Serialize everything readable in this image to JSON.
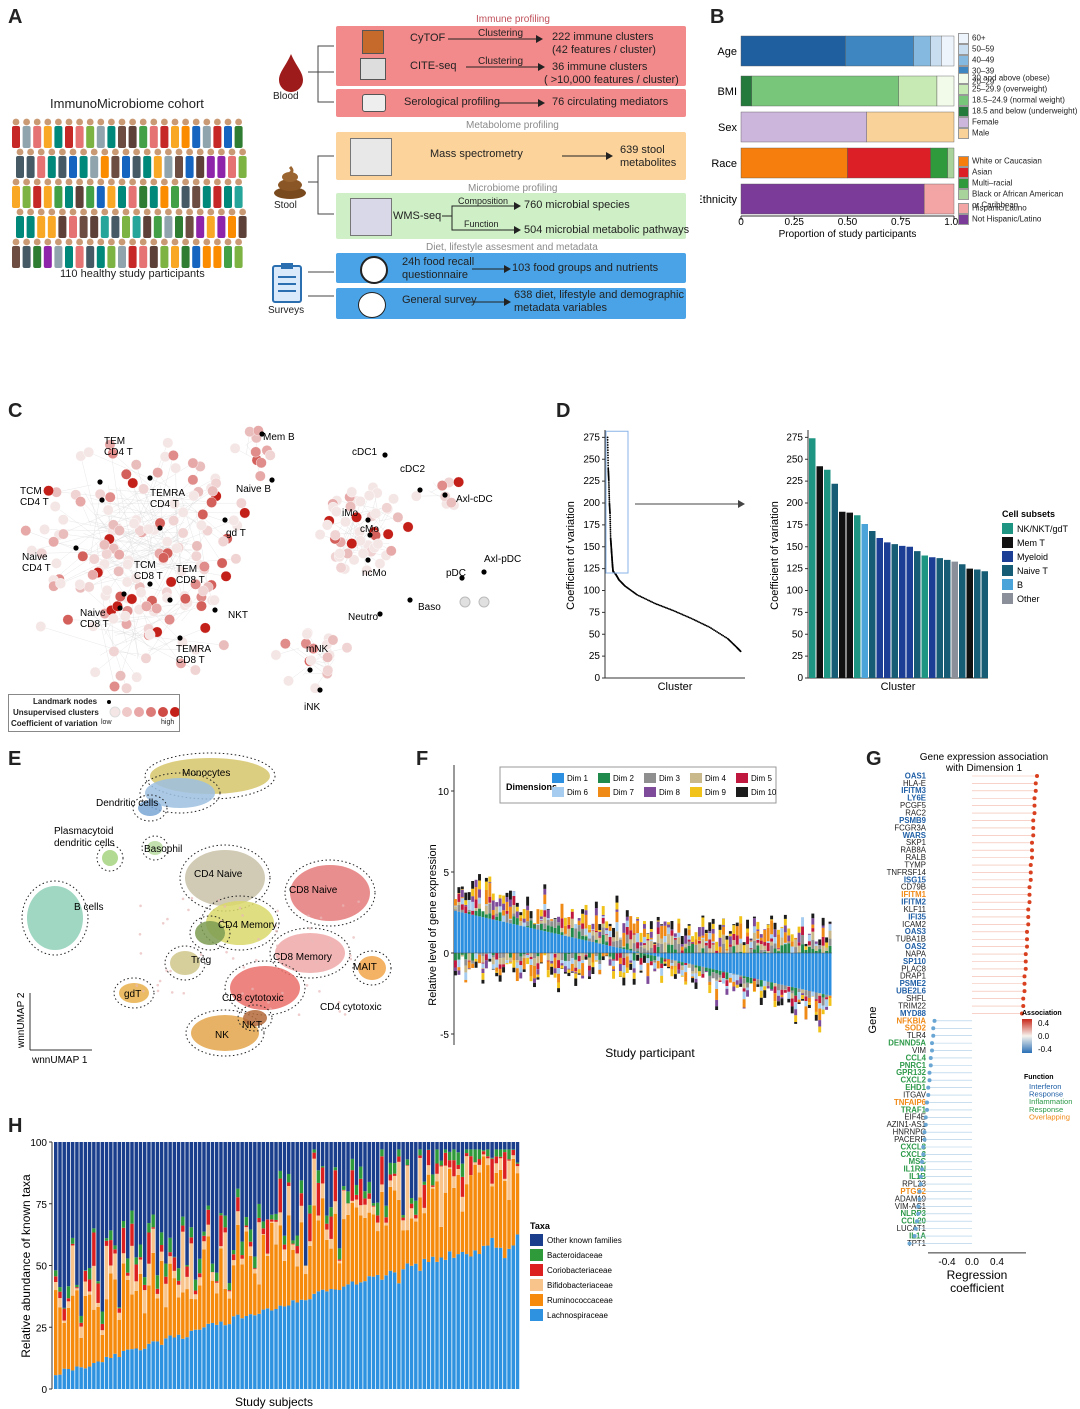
{
  "panels": {
    "A": "A",
    "B": "B",
    "C": "C",
    "D": "D",
    "E": "E",
    "F": "F",
    "G": "G",
    "H": "H"
  },
  "panelA": {
    "cohort_title": "ImmunoMicrobiome cohort",
    "cohort_caption": "110 healthy study participants",
    "sources": {
      "blood": "Blood",
      "stool": "Stool",
      "surveys": "Surveys"
    },
    "sections": {
      "immune": "Immune profiling",
      "metabolome": "Metabolome profiling",
      "microbiome": "Microbiome profiling",
      "diet": "Diet, lifestyle assesment and metadata"
    },
    "rows": {
      "cytof": {
        "method": "CyTOF",
        "arrow": "Clustering",
        "result1": "222 immune clusters",
        "result2": "(42 features / cluster)"
      },
      "cite": {
        "method": "CITE-seq",
        "arrow": "Clustering",
        "result1": "36 immune clusters",
        "result2": "( >10,000 features / cluster)"
      },
      "sero": {
        "method": "Serological profiling",
        "result1": "76 circulating mediators"
      },
      "ms": {
        "method": "Mass spectrometry",
        "result1": "639 stool",
        "result2": "metabolites"
      },
      "wms": {
        "method": "WMS-seq",
        "arrow1": "Composition",
        "arrow2": "Function",
        "result1": "760 microbial species",
        "result2": "504 microbial metabolic pathways"
      },
      "food": {
        "method1": "24h food recall",
        "method2": "questionnaire",
        "result1": "103 food groups and nutrients"
      },
      "survey": {
        "method": "General survey",
        "result1": "638 diet, lifestyle and demographic",
        "result2": "metadata variables"
      }
    }
  },
  "panelB": {
    "xlabel": "Proportion of study participants",
    "ticks": [
      "0",
      "0.25",
      "0.50",
      "0.75",
      "1.00"
    ],
    "rows": [
      {
        "label": "Age",
        "segments": [
          {
            "name": "20-29",
            "value": 0.49,
            "color": "#1f5fa0"
          },
          {
            "name": "30-39",
            "value": 0.32,
            "color": "#3d86c2"
          },
          {
            "name": "40-49",
            "value": 0.08,
            "color": "#86b9df"
          },
          {
            "name": "50-59",
            "value": 0.05,
            "color": "#c8def0"
          },
          {
            "name": "60+",
            "value": 0.06,
            "color": "#edf4fb"
          }
        ]
      },
      {
        "label": "BMI",
        "segments": [
          {
            "name": "18.5 and below (underweight)",
            "value": 0.05,
            "color": "#237a3b"
          },
          {
            "name": "18.5-24.9 (normal weight)",
            "value": 0.69,
            "color": "#78c679"
          },
          {
            "name": "25-29.9 (overweight)",
            "value": 0.18,
            "color": "#c7e9b4"
          },
          {
            "name": "30 and above (obese)",
            "value": 0.08,
            "color": "#f2fae9"
          }
        ]
      },
      {
        "label": "Sex",
        "segments": [
          {
            "name": "Female",
            "value": 0.59,
            "color": "#cdb6dc"
          },
          {
            "name": "Male",
            "value": 0.41,
            "color": "#f9d29a"
          }
        ]
      },
      {
        "label": "Race",
        "segments": [
          {
            "name": "White or Caucasian",
            "value": 0.5,
            "color": "#f57e0c"
          },
          {
            "name": "Asian",
            "value": 0.39,
            "color": "#dc1f26"
          },
          {
            "name": "Multi-racial",
            "value": 0.08,
            "color": "#2f9a3c"
          },
          {
            "name": "Black or African American or Caribbean",
            "value": 0.03,
            "color": "#a8d49b"
          }
        ]
      },
      {
        "label": "Ethnicity",
        "segments": [
          {
            "name": "Not Hispanic/Latino",
            "value": 0.86,
            "color": "#7a3c98"
          },
          {
            "name": "Hispanic/Latino",
            "value": 0.14,
            "color": "#f3a5a6"
          }
        ]
      }
    ],
    "legends": {
      "age": [
        {
          "label": "60+",
          "color": "#edf4fb"
        },
        {
          "label": "50–59",
          "color": "#c8def0"
        },
        {
          "label": "40–49",
          "color": "#86b9df"
        },
        {
          "label": "30–39",
          "color": "#3d86c2"
        },
        {
          "label": "20–29",
          "color": "#1f5fa0"
        }
      ],
      "bmi": [
        {
          "label": "30 and above (obese)",
          "color": "#f2fae9"
        },
        {
          "label": "25–29.9 (overweight)",
          "color": "#c7e9b4"
        },
        {
          "label": "18.5–24.9 (normal weight)",
          "color": "#78c679"
        },
        {
          "label": "18.5 and below (underweight)",
          "color": "#237a3b"
        }
      ],
      "sex": [
        {
          "label": "Female",
          "color": "#cdb6dc"
        },
        {
          "label": "Male",
          "color": "#f9d29a"
        }
      ],
      "race": [
        {
          "label": "White or Caucasian",
          "color": "#f57e0c"
        },
        {
          "label": "Asian",
          "color": "#dc1f26"
        },
        {
          "label": "Multi–racial",
          "color": "#2f9a3c"
        },
        {
          "label": "Black or African American",
          "color": "#a8d49b"
        },
        {
          "label": "or Caribbean",
          "color": "none"
        }
      ],
      "eth": [
        {
          "label": "Hispanic/Latino",
          "color": "#f3a5a6"
        },
        {
          "label": "Not Hispanic/Latino",
          "color": "#7a3c98"
        }
      ]
    }
  },
  "panelC": {
    "labels": [
      "TEM",
      "CD4 T",
      "TCM",
      "CD4 T",
      "TEMRA",
      "CD4 T",
      "Mem B",
      "Naive B",
      "gd T",
      "Naive",
      "CD4 T",
      "TCM",
      "CD8 T",
      "TEM",
      "CD8 T",
      "Naive",
      "CD8 T",
      "NKT",
      "TEMRA",
      "CD8 T",
      "mNK",
      "iNK",
      "cDC1",
      "cDC2",
      "Axl-cDC",
      "iMo",
      "cMo",
      "ncMo",
      "Axl-pDC",
      "pDC",
      "Neutro",
      "Baso"
    ],
    "legend": {
      "landmark": "Landmark nodes",
      "unsup": "Unsupervised clusters",
      "cv": "Coefficient of variation",
      "low": "low",
      "high": "high"
    }
  },
  "panelD": {
    "ylabel": "Coefficient of variation",
    "xlabel": "Cluster",
    "yticks": [
      "0",
      "25",
      "50",
      "75",
      "100",
      "125",
      "150",
      "175",
      "200",
      "225",
      "250",
      "275"
    ],
    "legend_title": "Cell subsets",
    "legend": [
      {
        "label": "NK/NKT/gdT",
        "color": "#1e9583"
      },
      {
        "label": "Mem T",
        "color": "#111111"
      },
      {
        "label": "Myeloid",
        "color": "#1c3f95"
      },
      {
        "label": "Naive T",
        "color": "#175c75"
      },
      {
        "label": "B",
        "color": "#4aa3d9"
      },
      {
        "label": "Other",
        "color": "#8a8f99"
      }
    ]
  },
  "panelE": {
    "labels": [
      "Monocytes",
      "Dendritic cells",
      "Plasmacytoid",
      "dendritic cells",
      "Basophil",
      "CD4 Naive",
      "CD8 Naive",
      "B cells",
      "CD4 Memory",
      "CD8 Memory",
      "Treg",
      "MAIT",
      "gdT",
      "CD8 cytotoxic",
      "CD4 cytotoxic",
      "NKT",
      "NK"
    ],
    "ylabel": "wnnUMAP 2",
    "xlabel": "wnnUMAP 1"
  },
  "panelF": {
    "ylabel": "Relative level of gene expression",
    "xlabel": "Study participant",
    "yticks": [
      "10",
      "5",
      "0",
      "-5"
    ],
    "legend_title": "Dimensions",
    "dims": [
      {
        "label": "Dim 1",
        "color": "#2c8fe0"
      },
      {
        "label": "Dim 2",
        "color": "#1f8a4c"
      },
      {
        "label": "Dim 3",
        "color": "#8f8f8f"
      },
      {
        "label": "Dim 4",
        "color": "#c9b98a"
      },
      {
        "label": "Dim 5",
        "color": "#c0173e"
      },
      {
        "label": "Dim 6",
        "color": "#a6cdf0"
      },
      {
        "label": "Dim 7",
        "color": "#f08a17"
      },
      {
        "label": "Dim 8",
        "color": "#7d4b9a"
      },
      {
        "label": "Dim 9",
        "color": "#f0c21a"
      },
      {
        "label": "Dim 10",
        "color": "#1b1b1b"
      }
    ]
  },
  "panelG": {
    "title1": "Gene expression association",
    "title2": "with Dimension 1",
    "ylabel": "Gene",
    "xlabel1": "Regression",
    "xlabel2": "coefficient",
    "xticks": [
      "-0.4",
      "0.0",
      "0.4"
    ],
    "assoc_title": "Association",
    "assoc_ticks": [
      "0.4",
      "0.0",
      "-0.4"
    ],
    "function_title": "Function",
    "functions": [
      {
        "label": "Interferon",
        "color": "#1f5fa6"
      },
      {
        "label": "Response",
        "color": "#1f5fa6"
      },
      {
        "label": "Inflammation",
        "color": "#2e9a4a"
      },
      {
        "label": "Response",
        "color": "#2e9a4a"
      },
      {
        "label": "Overlapping",
        "color": "#f08a17"
      }
    ],
    "genes": [
      {
        "name": "OAS1",
        "coef": 0.52,
        "f": "i"
      },
      {
        "name": "HLA-E",
        "coef": 0.51,
        "f": "n"
      },
      {
        "name": "IFITM3",
        "coef": 0.51,
        "f": "i"
      },
      {
        "name": "LY6E",
        "coef": 0.5,
        "f": "i"
      },
      {
        "name": "PCGF5",
        "coef": 0.5,
        "f": "n"
      },
      {
        "name": "RAC2",
        "coef": 0.5,
        "f": "n"
      },
      {
        "name": "PSMB9",
        "coef": 0.49,
        "f": "i"
      },
      {
        "name": "FCGR3A",
        "coef": 0.49,
        "f": "n"
      },
      {
        "name": "WARS",
        "coef": 0.49,
        "f": "i"
      },
      {
        "name": "SKP1",
        "coef": 0.48,
        "f": "n"
      },
      {
        "name": "RAB8A",
        "coef": 0.48,
        "f": "n"
      },
      {
        "name": "RALB",
        "coef": 0.48,
        "f": "n"
      },
      {
        "name": "TYMP",
        "coef": 0.47,
        "f": "n"
      },
      {
        "name": "TNFRSF14",
        "coef": 0.47,
        "f": "n"
      },
      {
        "name": "ISG15",
        "coef": 0.47,
        "f": "i"
      },
      {
        "name": "CD79B",
        "coef": 0.46,
        "f": "n"
      },
      {
        "name": "IFITM1",
        "coef": 0.46,
        "f": "o"
      },
      {
        "name": "IFITM2",
        "coef": 0.46,
        "f": "i"
      },
      {
        "name": "KLF11",
        "coef": 0.45,
        "f": "n"
      },
      {
        "name": "IFI35",
        "coef": 0.45,
        "f": "i"
      },
      {
        "name": "ICAM2",
        "coef": 0.45,
        "f": "n"
      },
      {
        "name": "OAS3",
        "coef": 0.44,
        "f": "i"
      },
      {
        "name": "TUBA1B",
        "coef": 0.44,
        "f": "n"
      },
      {
        "name": "OAS2",
        "coef": 0.44,
        "f": "i"
      },
      {
        "name": "NAPA",
        "coef": 0.43,
        "f": "n"
      },
      {
        "name": "SP110",
        "coef": 0.43,
        "f": "i"
      },
      {
        "name": "PLAC8",
        "coef": 0.43,
        "f": "n"
      },
      {
        "name": "DRAP1",
        "coef": 0.42,
        "f": "n"
      },
      {
        "name": "PSME2",
        "coef": 0.42,
        "f": "i"
      },
      {
        "name": "UBE2L6",
        "coef": 0.42,
        "f": "i"
      },
      {
        "name": "SHFL",
        "coef": 0.41,
        "f": "n"
      },
      {
        "name": "TRIM22",
        "coef": 0.41,
        "f": "n"
      },
      {
        "name": "MYD88",
        "coef": 0.4,
        "f": "i"
      },
      {
        "name": "NFKBIA",
        "coef": -0.3,
        "f": "o"
      },
      {
        "name": "SOD2",
        "coef": -0.31,
        "f": "o"
      },
      {
        "name": "TLR4",
        "coef": -0.31,
        "f": "n"
      },
      {
        "name": "DENND5A",
        "coef": -0.32,
        "f": "g"
      },
      {
        "name": "VIM",
        "coef": -0.32,
        "f": "n"
      },
      {
        "name": "CCL4",
        "coef": -0.33,
        "f": "g"
      },
      {
        "name": "PNRC1",
        "coef": -0.33,
        "f": "g"
      },
      {
        "name": "GPR132",
        "coef": -0.34,
        "f": "g"
      },
      {
        "name": "CXCL2",
        "coef": -0.34,
        "f": "g"
      },
      {
        "name": "EHD1",
        "coef": -0.35,
        "f": "g"
      },
      {
        "name": "ITGAV",
        "coef": -0.35,
        "f": "n"
      },
      {
        "name": "TNFAIP6",
        "coef": -0.36,
        "f": "o"
      },
      {
        "name": "TRAF1",
        "coef": -0.36,
        "f": "g"
      },
      {
        "name": "EIF4E",
        "coef": -0.37,
        "f": "n"
      },
      {
        "name": "AZIN1-AS1",
        "coef": -0.37,
        "f": "n"
      },
      {
        "name": "HNRNPC",
        "coef": -0.38,
        "f": "n"
      },
      {
        "name": "PACERR",
        "coef": -0.38,
        "f": "n"
      },
      {
        "name": "CXCL8",
        "coef": -0.39,
        "f": "g"
      },
      {
        "name": "CXCL3",
        "coef": -0.39,
        "f": "g"
      },
      {
        "name": "MSC",
        "coef": -0.4,
        "f": "g"
      },
      {
        "name": "IL1RN",
        "coef": -0.4,
        "f": "g"
      },
      {
        "name": "IL1B",
        "coef": -0.41,
        "f": "g"
      },
      {
        "name": "RPL23",
        "coef": -0.41,
        "f": "n"
      },
      {
        "name": "PTGS2",
        "coef": -0.42,
        "f": "o"
      },
      {
        "name": "ADAM19",
        "coef": -0.42,
        "f": "n"
      },
      {
        "name": "VIM-AS1",
        "coef": -0.43,
        "f": "n"
      },
      {
        "name": "NLRP3",
        "coef": -0.43,
        "f": "g"
      },
      {
        "name": "CCL20",
        "coef": -0.44,
        "f": "g"
      },
      {
        "name": "LUCAT1",
        "coef": -0.45,
        "f": "n"
      },
      {
        "name": "IL1A",
        "coef": -0.46,
        "f": "g"
      },
      {
        "name": "TPT1",
        "coef": -0.5,
        "f": "n"
      }
    ]
  },
  "panelH": {
    "ylabel": "Relative abundance of known taxa",
    "xlabel": "Study subjects",
    "yticks": [
      "0",
      "25",
      "50",
      "75",
      "100"
    ],
    "legend_title": "Taxa",
    "taxa": [
      {
        "label": "Other known families",
        "color": "#1a3e8c"
      },
      {
        "label": "Bacteroidaceae",
        "color": "#2e9a3a"
      },
      {
        "label": "Coriobacteriaceae",
        "color": "#dc1f1f"
      },
      {
        "label": "Bifidobacteriaceae",
        "color": "#f8c48c"
      },
      {
        "label": "Ruminococcaceae",
        "color": "#f58a0c"
      },
      {
        "label": "Lachnospiraceae",
        "color": "#2e92e0"
      }
    ]
  },
  "chart_data": [
    {
      "type": "bar",
      "title": "Panel B demographics (stacked proportions)",
      "categories": [
        "Age",
        "BMI",
        "Sex",
        "Race",
        "Ethnicity"
      ],
      "xlabel": "Proportion of study participants",
      "xlim": [
        0,
        1
      ]
    },
    {
      "type": "scatter",
      "title": "Panel D (left) Coefficient of variation by cluster",
      "ylabel": "Coefficient of variation",
      "xlabel": "Cluster",
      "ylim": [
        0,
        280
      ],
      "x": [
        1,
        2,
        3,
        4,
        5,
        6,
        7,
        8,
        9,
        10,
        15,
        20,
        30,
        50,
        80,
        110,
        140,
        170,
        200,
        215,
        222
      ],
      "y": [
        275,
        240,
        226,
        200,
        188,
        160,
        150,
        140,
        130,
        122,
        118,
        112,
        105,
        95,
        85,
        77,
        68,
        58,
        45,
        35,
        30
      ]
    },
    {
      "type": "bar",
      "title": "Panel D (right) top clusters",
      "ylabel": "Coefficient of variation",
      "xlabel": "Cluster",
      "ylim": [
        0,
        280
      ],
      "values": [
        274,
        242,
        238,
        222,
        190,
        189,
        186,
        176,
        168,
        160,
        155,
        153,
        151,
        150,
        145,
        140,
        138,
        137,
        135,
        133,
        130,
        125,
        124,
        122
      ],
      "subsets": [
        "NK/NKT/gdT",
        "Mem T",
        "NK/NKT/gdT",
        "Naive T",
        "Mem T",
        "Mem T",
        "NK/NKT/gdT",
        "B",
        "Naive T",
        "Myeloid",
        "Myeloid",
        "Naive T",
        "Myeloid",
        "Myeloid",
        "Naive T",
        "NK/NKT/gdT",
        "Myeloid",
        "Naive T",
        "Naive T",
        "Other",
        "Naive T",
        "Mem T",
        "Naive T",
        "Naive T"
      ]
    },
    {
      "type": "bar",
      "title": "Panel G regression coefficients",
      "xlabel": "Regression coefficient",
      "xlim": [
        -0.6,
        0.6
      ]
    },
    {
      "type": "bar",
      "title": "Panel H relative abundance",
      "ylabel": "Relative abundance of known taxa",
      "xlabel": "Study subjects",
      "ylim": [
        0,
        100
      ],
      "series_summary": [
        {
          "name": "Lachnospiraceae",
          "range": [
            5,
            70
          ]
        },
        {
          "name": "Ruminococcaceae",
          "range": [
            10,
            40
          ]
        },
        {
          "name": "Bifidobacteriaceae",
          "range": [
            0,
            30
          ]
        },
        {
          "name": "Coriobacteriaceae",
          "range": [
            0,
            20
          ]
        },
        {
          "name": "Bacteroidaceae",
          "range": [
            0,
            8
          ]
        },
        {
          "name": "Other known families",
          "range": [
            2,
            30
          ]
        }
      ]
    }
  ]
}
